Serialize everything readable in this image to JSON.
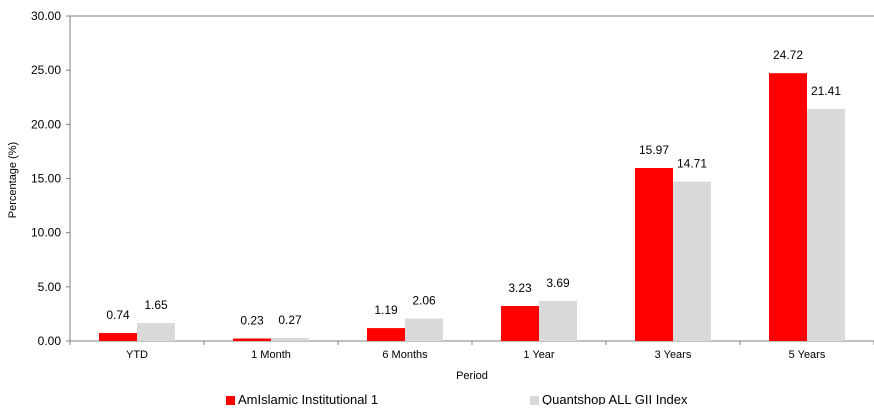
{
  "chart_data": {
    "type": "bar",
    "title": "",
    "xlabel": "Period",
    "ylabel": "Percentage (%)",
    "ylim": [
      0,
      30
    ],
    "yticks": [
      "0.00",
      "5.00",
      "10.00",
      "15.00",
      "20.00",
      "25.00",
      "30.00"
    ],
    "categories": [
      "YTD",
      "1 Month",
      "6 Months",
      "1 Year",
      "3 Years",
      "5 Years"
    ],
    "series": [
      {
        "name": "AmIslamic Institutional 1",
        "color": "#ff0000",
        "values": [
          0.74,
          0.23,
          1.19,
          3.23,
          15.97,
          24.72
        ],
        "labels": [
          "0.74",
          "0.23",
          "1.19",
          "3.23",
          "15.97",
          "24.72"
        ]
      },
      {
        "name": "Quantshop ALL GII Index",
        "color": "#d9d9d9",
        "values": [
          1.65,
          0.27,
          2.06,
          3.69,
          14.71,
          21.41
        ],
        "labels": [
          "1.65",
          "0.27",
          "2.06",
          "3.69",
          "14.71",
          "21.41"
        ]
      }
    ],
    "grid": false,
    "legend_position": "bottom"
  }
}
